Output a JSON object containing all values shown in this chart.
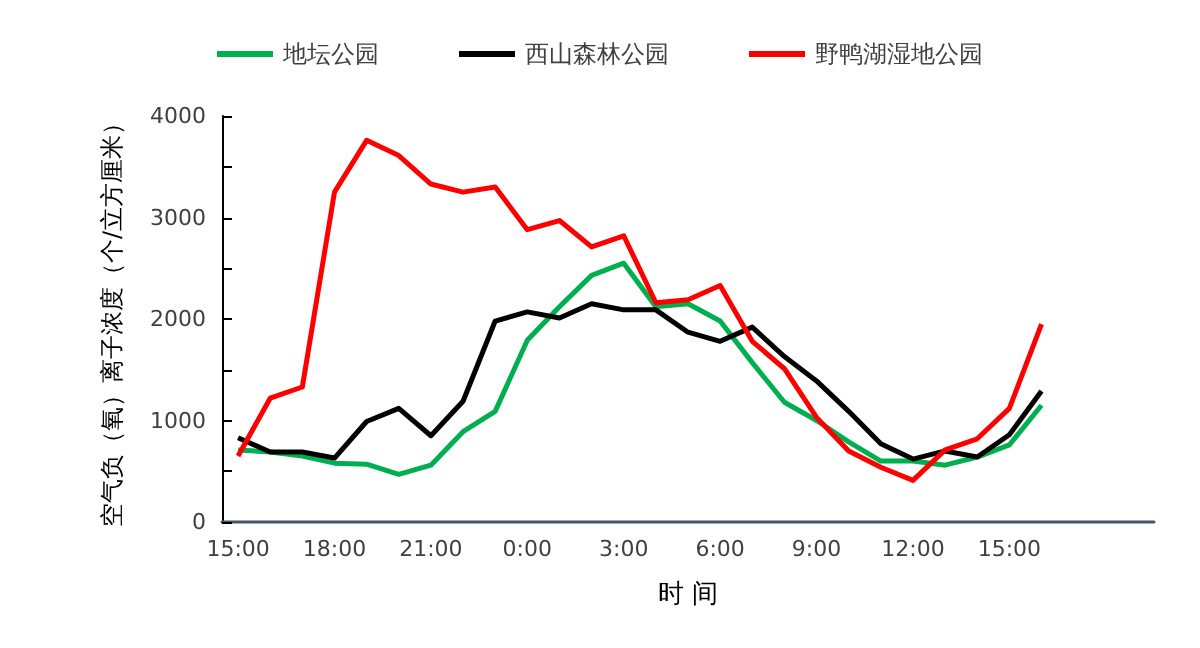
{
  "chart_data": {
    "type": "line",
    "xlabel": "时 间",
    "ylabel": "空气负（氧）离子浓度（个/立方厘米）",
    "categories": [
      "15:00",
      null,
      null,
      "18:00",
      null,
      null,
      "21:00",
      null,
      null,
      "0:00",
      null,
      null,
      "3:00",
      null,
      null,
      "6:00",
      null,
      null,
      "9:00",
      null,
      null,
      "12:00",
      null,
      null,
      "15:00",
      null,
      null,
      null,
      null
    ],
    "series": [
      {
        "name": "地坛公园",
        "color": "#00b050",
        "values": [
          710,
          690,
          650,
          580,
          570,
          470,
          560,
          890,
          1090,
          1790,
          2120,
          2430,
          2550,
          2120,
          2150,
          1980,
          1570,
          1180,
          1000,
          790,
          600,
          600,
          560,
          640,
          760,
          1150,
          null,
          null,
          null
        ]
      },
      {
        "name": "西山森林公园",
        "color": "#000000",
        "values": [
          830,
          690,
          690,
          630,
          990,
          1120,
          850,
          1190,
          1980,
          2070,
          2010,
          2150,
          2090,
          2090,
          1870,
          1780,
          1920,
          1630,
          1390,
          1090,
          770,
          620,
          700,
          640,
          860,
          1290,
          null,
          null,
          null
        ]
      },
      {
        "name": "野鸭湖湿地公园",
        "color": "#ff0000",
        "values": [
          650,
          1220,
          1330,
          3250,
          3760,
          3610,
          3330,
          3250,
          3300,
          2880,
          2970,
          2710,
          2820,
          2160,
          2190,
          2330,
          1780,
          1510,
          1030,
          700,
          540,
          410,
          710,
          820,
          1120,
          1950,
          null,
          null,
          null
        ]
      }
    ],
    "ylim": [
      0,
      4000
    ],
    "yticks": [
      0,
      {
        "value": 500,
        "label": null
      },
      1000,
      {
        "value": 1500,
        "label": null
      },
      2000,
      {
        "value": 2500,
        "label": null
      },
      3000,
      {
        "value": 3500,
        "label": null
      },
      4000
    ],
    "grid": false,
    "legend": "top",
    "marker": "none",
    "line_style": "solid"
  }
}
